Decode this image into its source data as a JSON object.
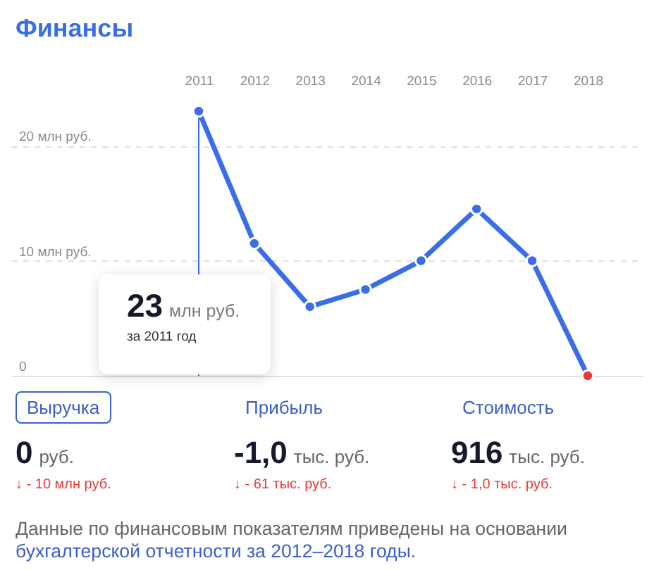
{
  "chart_data": [
    {
      "type": "line",
      "title": "Финансы",
      "categories": [
        "2011",
        "2012",
        "2013",
        "2014",
        "2015",
        "2016",
        "2017",
        "2018"
      ],
      "values": [
        23,
        11.5,
        6,
        7.5,
        10,
        14.5,
        10,
        0
      ],
      "color": "#3a6ee8",
      "colors": [
        "#3a6ee8",
        "#3a6ee8",
        "#3a6ee8",
        "#3a6ee8",
        "#3a6ee8",
        "#3a6ee8",
        "#3a6ee8",
        "#e53935"
      ],
      "ylim": [
        0,
        23
      ],
      "yticks": [
        0,
        {
          "value": 10,
          "label": "10 млн руб."
        },
        {
          "value": 20,
          "label": "20 млн руб."
        }
      ],
      "grid": "y",
      "marker": "circle",
      "line_style": "solid",
      "ref_lines": [
        {
          "axis": "x",
          "value": "2011",
          "color": "#3a6ee8"
        }
      ],
      "annotations": [
        "23 млн руб.",
        "за 2011 год"
      ]
    },
    {
      "type": "other",
      "annotations": [
        "Выручка",
        "Прибыль",
        "Стоимость",
        "0 руб.",
        "-1,0 тыс. руб.",
        "916 тыс. руб.",
        "↓ - 10 млн руб.",
        "↓ - 61 тыс. руб.",
        "↓ - 1,0 тыс. руб.",
        "Данные по финансовым показателям приведены на основании",
        "бухгалтерской отчетности за 2012–2018 годы."
      ]
    }
  ]
}
